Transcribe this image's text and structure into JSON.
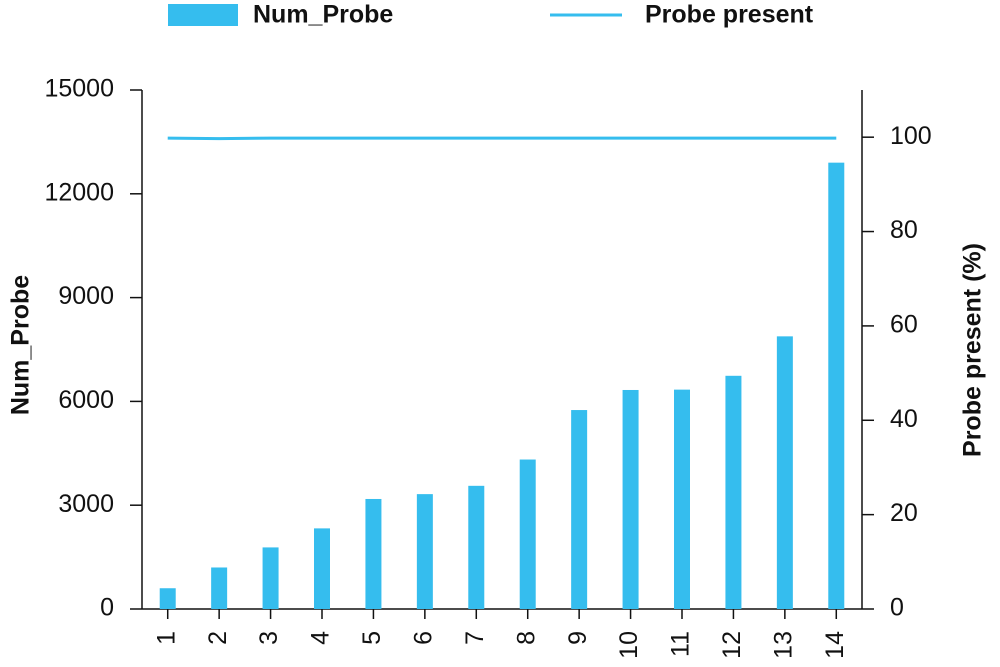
{
  "chart_data": {
    "type": "bar_line",
    "categories": [
      "1",
      "2",
      "3",
      "4",
      "5",
      "6",
      "7",
      "8",
      "9",
      "10",
      "11",
      "12",
      "13",
      "14"
    ],
    "series": [
      {
        "name": "Num_Probe",
        "color": "#35bdee",
        "type": "bar",
        "values": [
          600,
          1200,
          1780,
          2330,
          3180,
          3320,
          3560,
          4320,
          5750,
          6330,
          6340,
          6740,
          7880,
          12900
        ]
      },
      {
        "name": "Probe present",
        "color": "#35bdee",
        "type": "line",
        "axis": "y2",
        "values": [
          99.8,
          99.7,
          99.8,
          99.8,
          99.8,
          99.8,
          99.8,
          99.8,
          99.8,
          99.8,
          99.8,
          99.8,
          99.8,
          99.8
        ]
      }
    ],
    "ylabel": "Num_Probe",
    "y2label": "Probe present (%)",
    "ylim": [
      0,
      15000
    ],
    "yticks": [
      0,
      3000,
      6000,
      9000,
      12000,
      15000
    ],
    "y2lim": [
      0,
      110
    ],
    "y2ticks": [
      0,
      20,
      40,
      60,
      80,
      100
    ],
    "grid": false,
    "legend": "top"
  }
}
